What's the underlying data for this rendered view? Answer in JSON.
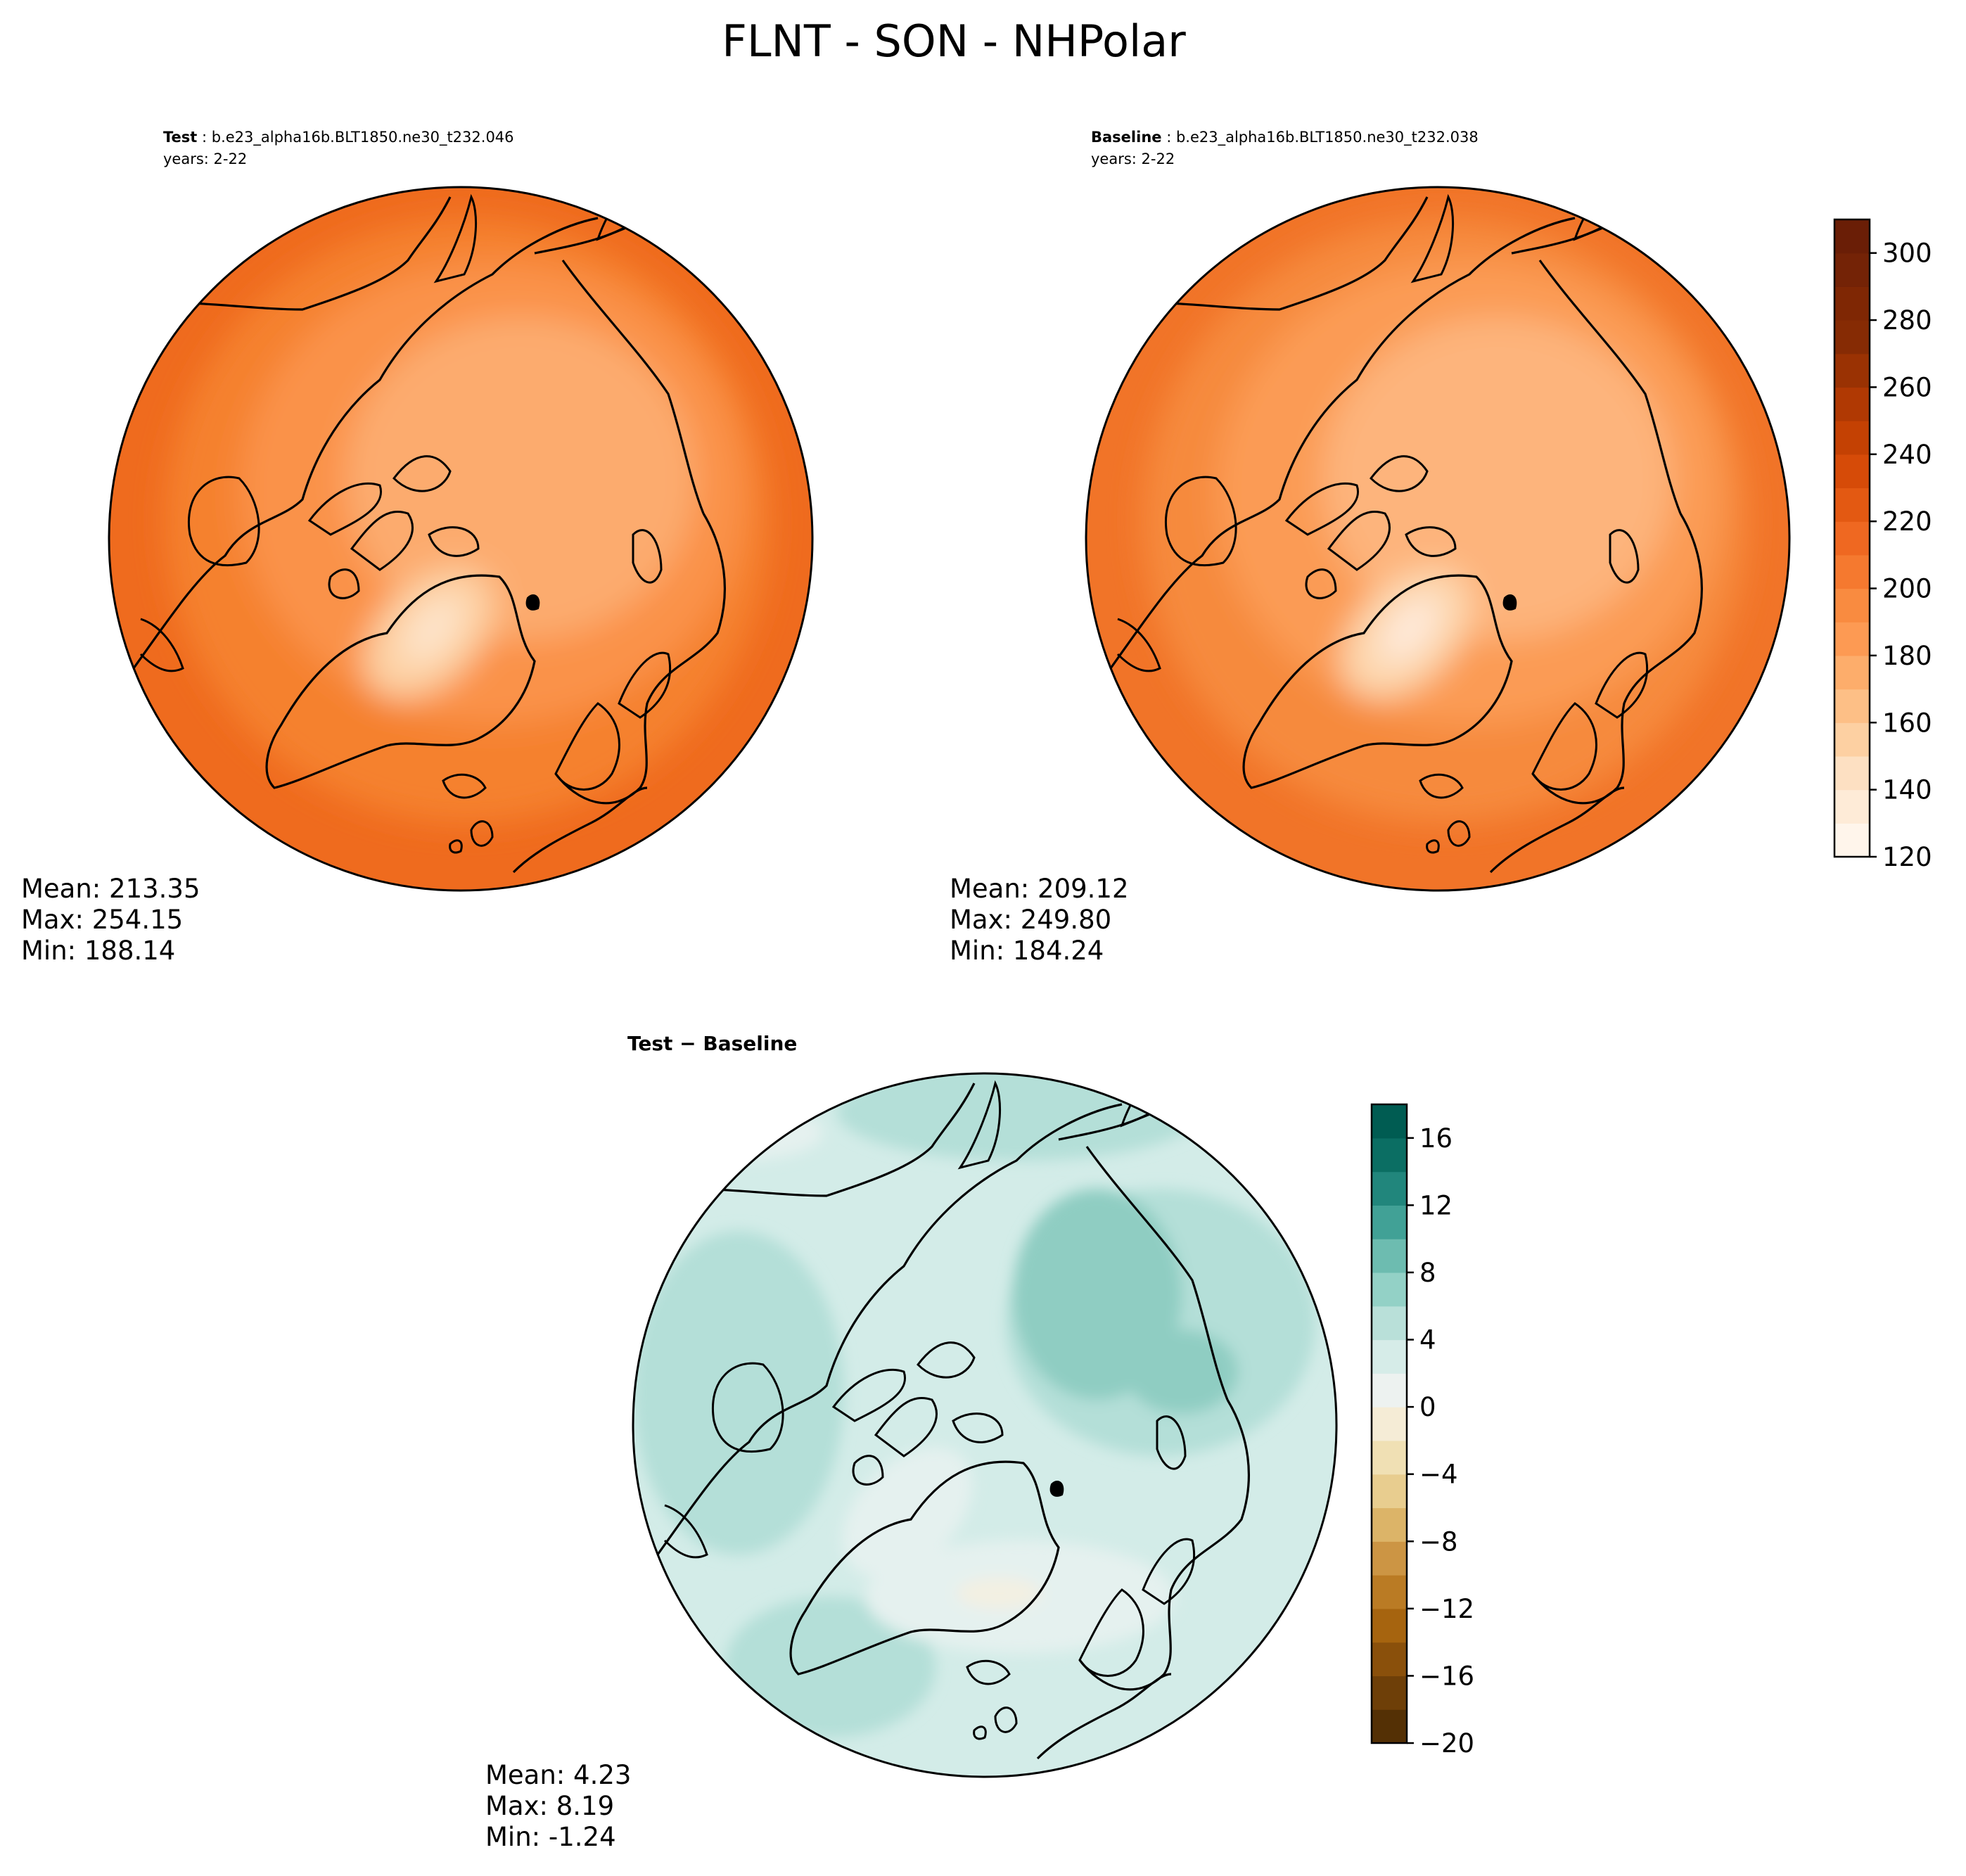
{
  "title": "FLNT - SON - NHPolar",
  "panels": {
    "test": {
      "label_bold": "Test",
      "label_rest": " : b.e23_alpha16b.BLT1850.ne30_t232.046",
      "years": "years: 2-22",
      "stats": {
        "mean": "Mean: 213.35",
        "max": "Max: 254.15",
        "min": "Min: 188.14"
      }
    },
    "baseline": {
      "label_bold": "Baseline",
      "label_rest": " : b.e23_alpha16b.BLT1850.ne30_t232.038",
      "years": "years: 2-22",
      "stats": {
        "mean": "Mean: 209.12",
        "max": "Max: 249.80",
        "min": "Min: 184.24"
      }
    },
    "diff": {
      "label": "Test − Baseline",
      "stats": {
        "mean": "Mean:  4.23",
        "max": "Max:  8.19",
        "min": "Min: -1.24"
      }
    }
  },
  "colorbars": {
    "main": {
      "cmap": "Oranges",
      "min": 120,
      "max": 310,
      "levels": [
        120,
        130,
        140,
        150,
        160,
        170,
        180,
        190,
        200,
        210,
        220,
        230,
        240,
        250,
        260,
        270,
        280,
        290,
        300,
        310
      ],
      "colors": [
        "#fff5eb",
        "#feebd7",
        "#fde0c2",
        "#fdd0a2",
        "#fdbf86",
        "#fdad6b",
        "#fd9a53",
        "#f98b40",
        "#f5792f",
        "#ef6821",
        "#e35912",
        "#d64b08",
        "#c44103",
        "#b03903",
        "#9a3203",
        "#862b04",
        "#7f2704",
        "#742306",
        "#6a1e06"
      ],
      "ticks": [
        "120",
        "140",
        "160",
        "180",
        "200",
        "220",
        "240",
        "260",
        "280",
        "300"
      ]
    },
    "diff": {
      "cmap": "BrBG",
      "min": -20,
      "max": 18,
      "levels": [
        -20,
        -18,
        -16,
        -14,
        -12,
        -10,
        -8,
        -6,
        -4,
        -2,
        0,
        2,
        4,
        6,
        8,
        10,
        12,
        14,
        16,
        18
      ],
      "colors": [
        "#543005",
        "#6e3f08",
        "#8a500b",
        "#a6640f",
        "#ba7b24",
        "#cc9544",
        "#dcb468",
        "#e8cd8f",
        "#f0e0b4",
        "#f5ecd6",
        "#edf2f0",
        "#d6ece8",
        "#b9e0d9",
        "#93d1c6",
        "#6dbcb0",
        "#41a196",
        "#21867c",
        "#0b6e63",
        "#005c52"
      ],
      "ticks": [
        "−20",
        "−16",
        "−12",
        "−8",
        "−4",
        "0",
        "4",
        "8",
        "12",
        "16"
      ]
    }
  },
  "map_fields": {
    "test": {
      "ocean_outer": "#ef6b1e",
      "ocean_mid": "#f5812f",
      "ocean_inner": "#fa9249",
      "arctic": "#fcab6e",
      "greenland": "#fdd1a4",
      "greenland_core": "#fde5cc"
    },
    "baseline": {
      "ocean_outer": "#f17428",
      "ocean_mid": "#f68a3c",
      "ocean_inner": "#fb9b55",
      "arctic": "#fdb47c",
      "greenland": "#fdd7ae",
      "greenland_core": "#feeadb"
    },
    "diff": {
      "base": "#d3ece8",
      "band": "#b4dfd8",
      "strong": "#8fcdc2",
      "light": "#e5f1ef",
      "neutral": "#f3f0e2"
    }
  }
}
